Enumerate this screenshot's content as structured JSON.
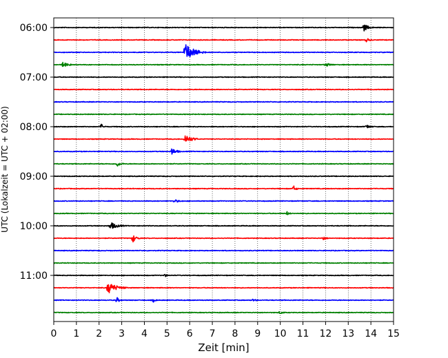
{
  "chart_data": {
    "type": "line",
    "title": "",
    "xlabel": "Zeit  [min]",
    "ylabel": "UTC (Lokalzeit = UTC + 02:00)",
    "xlim": [
      0,
      15
    ],
    "x_ticks": [
      "0",
      "1",
      "2",
      "3",
      "4",
      "5",
      "6",
      "7",
      "8",
      "9",
      "10",
      "11",
      "12",
      "13",
      "14",
      "15"
    ],
    "y_ticks": [
      "06:00",
      "07:00",
      "08:00",
      "09:00",
      "10:00",
      "11:00"
    ],
    "grid": {
      "x": true,
      "y": false
    },
    "trace_interval_min": 15,
    "colors": [
      "#000000",
      "#ff0000",
      "#0000ff",
      "#008000"
    ],
    "traces": [
      {
        "start": "06:00",
        "color": "#000000",
        "events": [
          {
            "t": 13.7,
            "amp": 1.2,
            "dur": 0.4
          }
        ]
      },
      {
        "start": "06:15",
        "color": "#ff0000",
        "events": [
          {
            "t": 13.8,
            "amp": 0.6,
            "dur": 0.3
          }
        ]
      },
      {
        "start": "06:30",
        "color": "#0000ff",
        "events": [
          {
            "t": 5.8,
            "amp": 3.0,
            "dur": 0.9
          }
        ]
      },
      {
        "start": "06:45",
        "color": "#008000",
        "events": [
          {
            "t": 0.4,
            "amp": 1.0,
            "dur": 0.4
          },
          {
            "t": 12.0,
            "amp": 0.6,
            "dur": 0.4
          }
        ]
      },
      {
        "start": "07:00",
        "color": "#000000",
        "events": []
      },
      {
        "start": "07:15",
        "color": "#ff0000",
        "events": []
      },
      {
        "start": "07:30",
        "color": "#0000ff",
        "events": []
      },
      {
        "start": "07:45",
        "color": "#008000",
        "events": []
      },
      {
        "start": "08:00",
        "color": "#000000",
        "events": [
          {
            "t": 2.1,
            "amp": 0.9,
            "dur": 0.2
          },
          {
            "t": 13.8,
            "amp": 0.7,
            "dur": 0.3
          }
        ]
      },
      {
        "start": "08:15",
        "color": "#ff0000",
        "events": [
          {
            "t": 5.8,
            "amp": 1.6,
            "dur": 0.6
          }
        ]
      },
      {
        "start": "08:30",
        "color": "#0000ff",
        "events": [
          {
            "t": 5.2,
            "amp": 1.3,
            "dur": 0.4
          }
        ]
      },
      {
        "start": "08:45",
        "color": "#008000",
        "events": [
          {
            "t": 2.8,
            "amp": 0.9,
            "dur": 0.3
          }
        ]
      },
      {
        "start": "09:00",
        "color": "#000000",
        "events": []
      },
      {
        "start": "09:15",
        "color": "#ff0000",
        "events": [
          {
            "t": 10.6,
            "amp": 0.9,
            "dur": 0.2
          }
        ]
      },
      {
        "start": "09:30",
        "color": "#0000ff",
        "events": [
          {
            "t": 5.3,
            "amp": 0.6,
            "dur": 0.4
          }
        ]
      },
      {
        "start": "09:45",
        "color": "#008000",
        "events": [
          {
            "t": 10.3,
            "amp": 0.6,
            "dur": 0.2
          }
        ]
      },
      {
        "start": "10:00",
        "color": "#000000",
        "events": [
          {
            "t": 2.5,
            "amp": 1.3,
            "dur": 0.6
          }
        ]
      },
      {
        "start": "10:15",
        "color": "#ff0000",
        "events": [
          {
            "t": 3.5,
            "amp": 1.3,
            "dur": 0.3
          },
          {
            "t": 11.9,
            "amp": 0.8,
            "dur": 0.2
          }
        ]
      },
      {
        "start": "10:30",
        "color": "#0000ff",
        "events": []
      },
      {
        "start": "10:45",
        "color": "#008000",
        "events": []
      },
      {
        "start": "11:00",
        "color": "#000000",
        "events": [
          {
            "t": 4.9,
            "amp": 0.5,
            "dur": 0.2
          }
        ]
      },
      {
        "start": "11:15",
        "color": "#ff0000",
        "events": [
          {
            "t": 2.4,
            "amp": 2.0,
            "dur": 0.8
          }
        ]
      },
      {
        "start": "11:30",
        "color": "#0000ff",
        "events": [
          {
            "t": 2.8,
            "amp": 0.9,
            "dur": 0.2
          },
          {
            "t": 4.4,
            "amp": 0.6,
            "dur": 0.2
          },
          {
            "t": 8.8,
            "amp": 0.5,
            "dur": 0.2
          }
        ]
      },
      {
        "start": "11:45",
        "color": "#008000",
        "events": [
          {
            "t": 10.0,
            "amp": 0.5,
            "dur": 0.2
          }
        ]
      }
    ]
  }
}
